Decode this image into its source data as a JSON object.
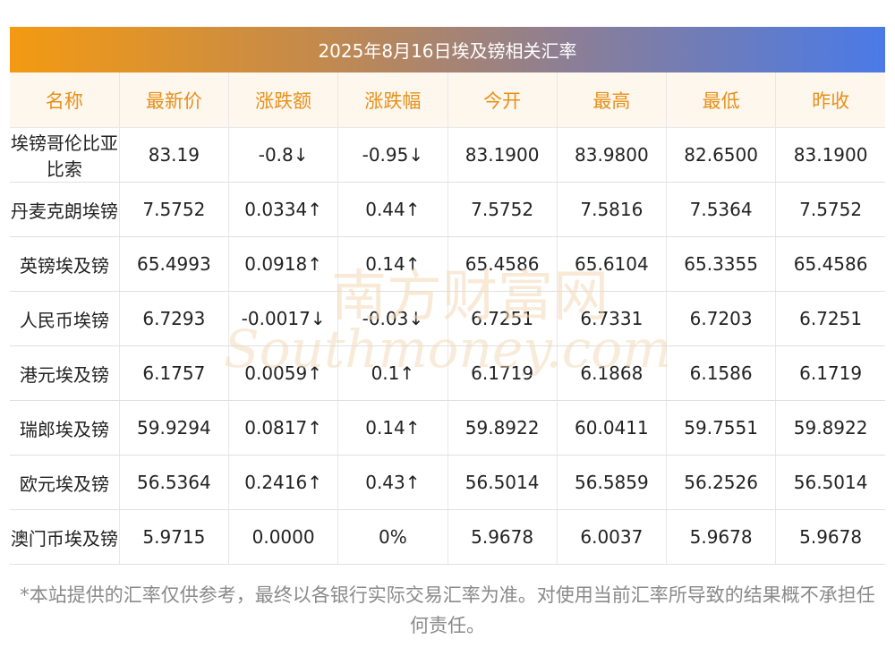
{
  "title": "2025年8月16日埃及镑相关汇率",
  "columns": [
    "名称",
    "最新价",
    "涨跌额",
    "涨跌幅",
    "今开",
    "最高",
    "最低",
    "昨收"
  ],
  "rows": [
    {
      "name": "埃镑哥伦比亚比索",
      "latest": "83.19",
      "change": "-0.8↓",
      "pct": "-0.95↓",
      "open": "83.1900",
      "high": "83.9800",
      "low": "82.6500",
      "prev": "83.1900",
      "trend": "down"
    },
    {
      "name": "丹麦克朗埃镑",
      "latest": "7.5752",
      "change": "0.0334↑",
      "pct": "0.44↑",
      "open": "7.5752",
      "high": "7.5816",
      "low": "7.5364",
      "prev": "7.5752",
      "trend": "up"
    },
    {
      "name": "英镑埃及镑",
      "latest": "65.4993",
      "change": "0.0918↑",
      "pct": "0.14↑",
      "open": "65.4586",
      "high": "65.6104",
      "low": "65.3355",
      "prev": "65.4586",
      "trend": "up"
    },
    {
      "name": "人民币埃镑",
      "latest": "6.7293",
      "change": "-0.0017↓",
      "pct": "-0.03↓",
      "open": "6.7251",
      "high": "6.7331",
      "low": "6.7203",
      "prev": "6.7251",
      "trend": "down"
    },
    {
      "name": "港元埃及镑",
      "latest": "6.1757",
      "change": "0.0059↑",
      "pct": "0.1↑",
      "open": "6.1719",
      "high": "6.1868",
      "low": "6.1586",
      "prev": "6.1719",
      "trend": "up"
    },
    {
      "name": "瑞郎埃及镑",
      "latest": "59.9294",
      "change": "0.0817↑",
      "pct": "0.14↑",
      "open": "59.8922",
      "high": "60.0411",
      "low": "59.7551",
      "prev": "59.8922",
      "trend": "up"
    },
    {
      "name": "欧元埃及镑",
      "latest": "56.5364",
      "change": "0.2416↑",
      "pct": "0.43↑",
      "open": "56.5014",
      "high": "56.5859",
      "low": "56.2526",
      "prev": "56.5014",
      "trend": "up"
    },
    {
      "name": "澳门币埃及镑",
      "latest": "5.9715",
      "change": "0.0000",
      "pct": "0%",
      "open": "5.9678",
      "high": "6.0037",
      "low": "5.9678",
      "prev": "5.9678",
      "trend": "flat"
    }
  ],
  "watermark": {
    "line1": "南方财富网",
    "line2": "Southmoney.com"
  },
  "footnote": "*本站提供的汇率仅供参考，最终以各银行实际交易汇率为准。对使用当前汇率所导致的结果概不承担任何责任。",
  "colors": {
    "up": "#e02020",
    "down": "#1a8a1a",
    "header_text": "#e8901a",
    "header_bg": "#fdf7ee",
    "watermark": "#f3d9b5"
  }
}
